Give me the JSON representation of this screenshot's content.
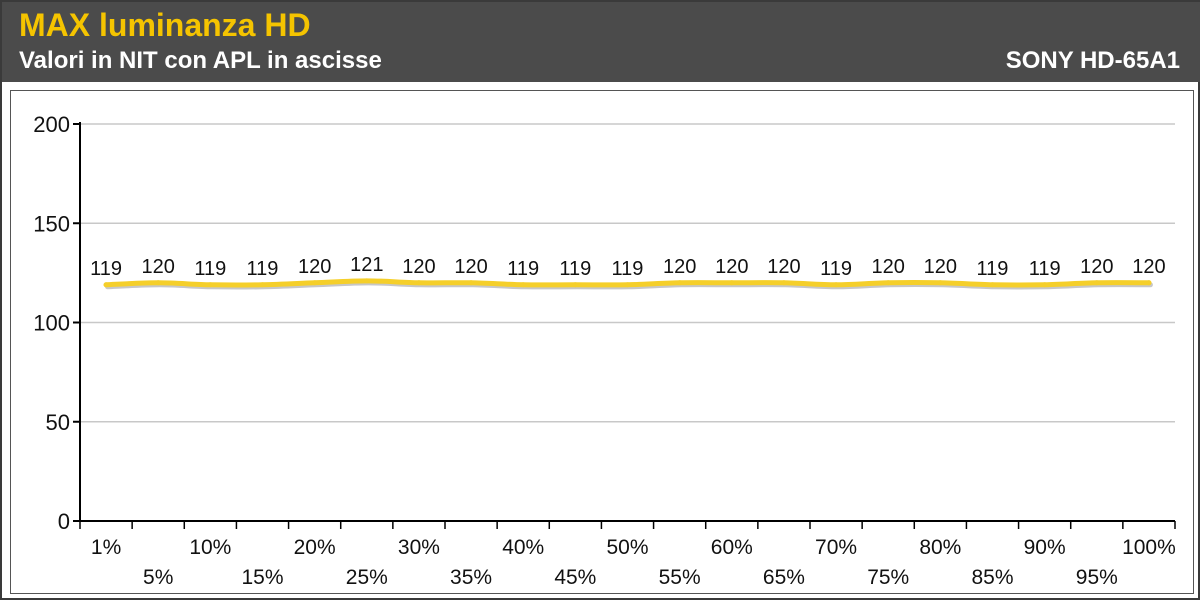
{
  "header": {
    "title": "MAX luminanza HD",
    "subtitle": "Valori in NIT con APL in ascisse",
    "model": "SONY HD-65A1"
  },
  "colors": {
    "header_bg": "#4b4b4b",
    "title": "#f5c400",
    "line": "#f5cf2a",
    "grid": "#c8c8c8"
  },
  "chart_data": {
    "type": "line",
    "categories": [
      "1%",
      "5%",
      "10%",
      "15%",
      "20%",
      "25%",
      "30%",
      "35%",
      "40%",
      "45%",
      "50%",
      "55%",
      "60%",
      "65%",
      "70%",
      "75%",
      "80%",
      "85%",
      "90%",
      "95%",
      "100%"
    ],
    "series": [
      {
        "values": [
          119,
          120,
          119,
          119,
          120,
          121,
          120,
          120,
          119,
          119,
          119,
          120,
          120,
          120,
          119,
          120,
          120,
          119,
          119,
          120,
          120
        ]
      }
    ],
    "ylim": [
      0,
      200
    ],
    "yticks": [
      0,
      50,
      100,
      150,
      200
    ],
    "grid": true,
    "legend": "none",
    "data_labels": true
  }
}
